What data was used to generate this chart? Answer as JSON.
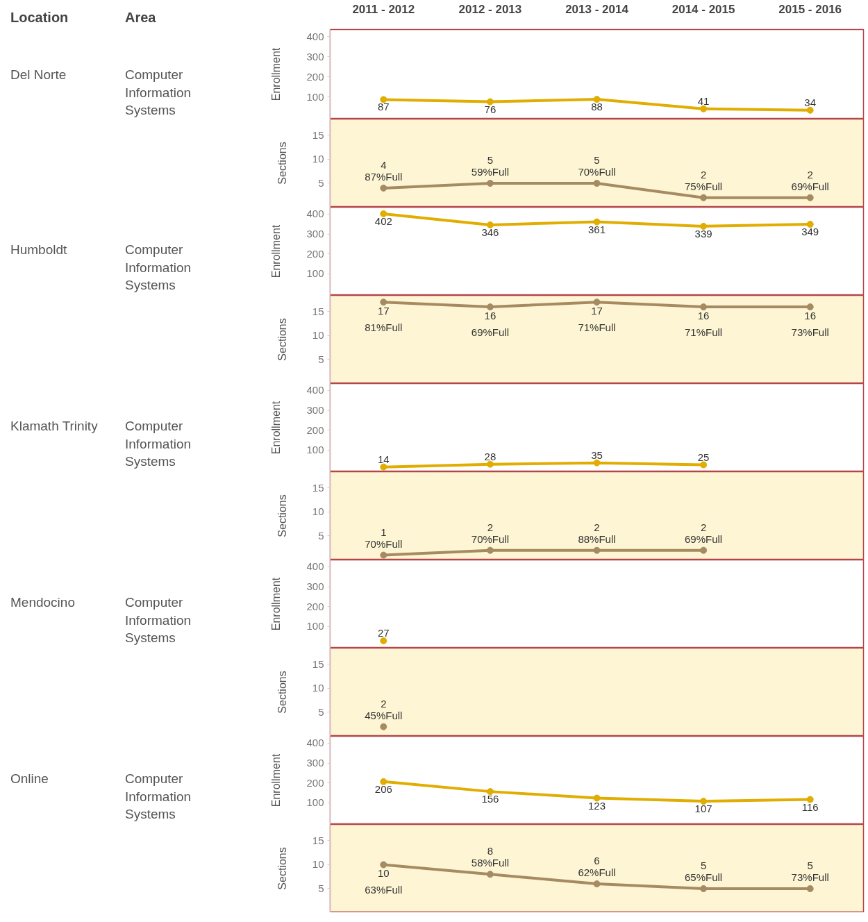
{
  "chart_data": [
    {
      "type": "other",
      "annotations": [
        "Location",
        "Area"
      ],
      "title": "Del Norte",
      "subtitle": "Computer Information Systems"
    },
    {
      "type": "line",
      "ylabel": "Enrollment",
      "categories": [
        "2011 - 2012",
        "2012 - 2013",
        "2013 - 2014",
        "2014 - 2015",
        "2015 - 2016"
      ],
      "values": [
        87,
        76,
        88,
        41,
        34
      ],
      "color": "#e0ad00",
      "ylim": [
        -10,
        435
      ],
      "yticks": [
        100,
        200,
        300,
        400
      ],
      "data_labels": true,
      "marker": "circle",
      "line_style": "solid",
      "grid": false
    },
    {
      "type": "line",
      "ylabel": "Sections",
      "categories": [
        "2011 - 2012",
        "2012 - 2013",
        "2013 - 2014",
        "2014 - 2015",
        "2015 - 2016"
      ],
      "values": [
        4,
        5,
        5,
        2,
        2
      ],
      "color": "#a68a62",
      "ylim": [
        0,
        18.4
      ],
      "yticks": [
        5,
        10,
        15
      ],
      "data_labels": true,
      "marker": "circle",
      "line_style": "solid",
      "grid": false,
      "tick_labels": "y",
      "annotations": [
        {
          "text": "87%Full",
          "x": "2011 - 2012",
          "y": 4
        },
        {
          "text": "59%Full",
          "x": "2012 - 2013",
          "y": 5
        },
        {
          "text": "70%Full",
          "x": "2013 - 2014",
          "y": 5
        },
        {
          "text": "75%Full",
          "x": "2014 - 2015",
          "y": 2
        },
        {
          "text": "69%Full",
          "x": "2015 - 2016",
          "y": 2
        }
      ]
    },
    {
      "type": "other",
      "title": "Humboldt",
      "subtitle": "Computer Information Systems"
    },
    {
      "type": "line",
      "ylabel": "Enrollment",
      "categories": [
        "2011 - 2012",
        "2012 - 2013",
        "2013 - 2014",
        "2014 - 2015",
        "2015 - 2016"
      ],
      "values": [
        402,
        346,
        361,
        339,
        349
      ],
      "color": "#e0ad00",
      "ylim": [
        -10,
        435
      ],
      "yticks": [
        100,
        200,
        300,
        400
      ],
      "data_labels": true,
      "marker": "circle",
      "line_style": "solid",
      "grid": false,
      "tick_labels": "y"
    },
    {
      "type": "line",
      "ylabel": "Sections",
      "categories": [
        "2011 - 2012",
        "2012 - 2013",
        "2013 - 2014",
        "2014 - 2015",
        "2015 - 2016"
      ],
      "values": [
        17,
        16,
        17,
        16,
        16
      ],
      "color": "#a68a62",
      "ylim": [
        0,
        18.4
      ],
      "yticks": [
        5,
        10,
        15
      ],
      "data_labels": true,
      "marker": "circle",
      "line_style": "solid",
      "grid": false,
      "tick_labels": "y",
      "annotations": [
        {
          "text": "81%Full",
          "x": "2011 - 2012",
          "y": 17
        },
        {
          "text": "69%Full",
          "x": "2012 - 2013",
          "y": 16
        },
        {
          "text": "71%Full",
          "x": "2013 - 2014",
          "y": 17
        },
        {
          "text": "71%Full",
          "x": "2014 - 2015",
          "y": 16
        },
        {
          "text": "73%Full",
          "x": "2015 - 2016",
          "y": 16
        }
      ]
    },
    {
      "type": "other",
      "title": "Klamath Trinity",
      "subtitle": "Computer Information Systems"
    },
    {
      "type": "line",
      "ylabel": "Enrollment",
      "categories": [
        "2011 - 2012",
        "2012 - 2013",
        "2013 - 2014",
        "2014 - 2015",
        "2015 - 2016"
      ],
      "values": [
        14,
        28,
        35,
        25,
        null
      ],
      "color": "#e0ad00",
      "ylim": [
        -10,
        435
      ],
      "yticks": [
        100,
        200,
        300,
        400
      ],
      "data_labels": true,
      "marker": "circle",
      "line_style": "solid",
      "grid": false,
      "tick_labels": "y"
    },
    {
      "type": "line",
      "ylabel": "Sections",
      "categories": [
        "2011 - 2012",
        "2012 - 2013",
        "2013 - 2014",
        "2014 - 2015",
        "2015 - 2016"
      ],
      "values": [
        1,
        2,
        2,
        2,
        null
      ],
      "color": "#a68a62",
      "ylim": [
        0,
        18.4
      ],
      "yticks": [
        5,
        10,
        15
      ],
      "data_labels": true,
      "marker": "circle",
      "line_style": "solid",
      "grid": false,
      "tick_labels": "y",
      "annotations": [
        {
          "text": "70%Full",
          "x": "2011 - 2012",
          "y": 1
        },
        {
          "text": "70%Full",
          "x": "2012 - 2013",
          "y": 2
        },
        {
          "text": "88%Full",
          "x": "2013 - 2014",
          "y": 2
        },
        {
          "text": "69%Full",
          "x": "2014 - 2015",
          "y": 2
        }
      ]
    },
    {
      "type": "other",
      "title": "Mendocino",
      "subtitle": "Computer Information Systems"
    },
    {
      "type": "line",
      "ylabel": "Enrollment",
      "categories": [
        "2011 - 2012",
        "2012 - 2013",
        "2013 - 2014",
        "2014 - 2015",
        "2015 - 2016"
      ],
      "values": [
        27,
        null,
        null,
        null,
        null
      ],
      "color": "#e0ad00",
      "ylim": [
        -10,
        435
      ],
      "yticks": [
        100,
        200,
        300,
        400
      ],
      "data_labels": true,
      "marker": "circle",
      "line_style": "solid",
      "grid": false,
      "tick_labels": "y"
    },
    {
      "type": "line",
      "ylabel": "Sections",
      "categories": [
        "2011 - 2012",
        "2012 - 2013",
        "2013 - 2014",
        "2014 - 2015",
        "2015 - 2016"
      ],
      "values": [
        2,
        null,
        null,
        null,
        null
      ],
      "color": "#a68a62",
      "ylim": [
        0,
        18.4
      ],
      "yticks": [
        5,
        10,
        15
      ],
      "data_labels": true,
      "marker": "circle",
      "line_style": "solid",
      "grid": false,
      "tick_labels": "y",
      "annotations": [
        {
          "text": "45%Full",
          "x": "2011 - 2012",
          "y": 2
        }
      ]
    },
    {
      "type": "other",
      "title": "Online",
      "subtitle": "Computer Information Systems"
    },
    {
      "type": "line",
      "ylabel": "Enrollment",
      "categories": [
        "2011 - 2012",
        "2012 - 2013",
        "2013 - 2014",
        "2014 - 2015",
        "2015 - 2016"
      ],
      "values": [
        206,
        156,
        123,
        107,
        116
      ],
      "color": "#e0ad00",
      "ylim": [
        -10,
        435
      ],
      "yticks": [
        100,
        200,
        300,
        400
      ],
      "data_labels": true,
      "marker": "circle",
      "line_style": "solid",
      "grid": false,
      "tick_labels": "y"
    },
    {
      "type": "line",
      "ylabel": "Sections",
      "categories": [
        "2011 - 2012",
        "2012 - 2013",
        "2013 - 2014",
        "2014 - 2015",
        "2015 - 2016"
      ],
      "values": [
        10,
        8,
        6,
        5,
        5
      ],
      "color": "#a68a62",
      "ylim": [
        0,
        18.4
      ],
      "yticks": [
        5,
        10,
        15
      ],
      "data_labels": true,
      "marker": "circle",
      "line_style": "solid",
      "grid": false,
      "tick_labels": "y",
      "annotations": [
        {
          "text": "63%Full",
          "x": "2011 - 2012",
          "y": 10
        },
        {
          "text": "58%Full",
          "x": "2012 - 2013",
          "y": 8
        },
        {
          "text": "62%Full",
          "x": "2013 - 2014",
          "y": 6
        },
        {
          "text": "65%Full",
          "x": "2014 - 2015",
          "y": 5
        },
        {
          "text": "73%Full",
          "x": "2015 - 2016",
          "y": 5
        }
      ]
    }
  ]
}
